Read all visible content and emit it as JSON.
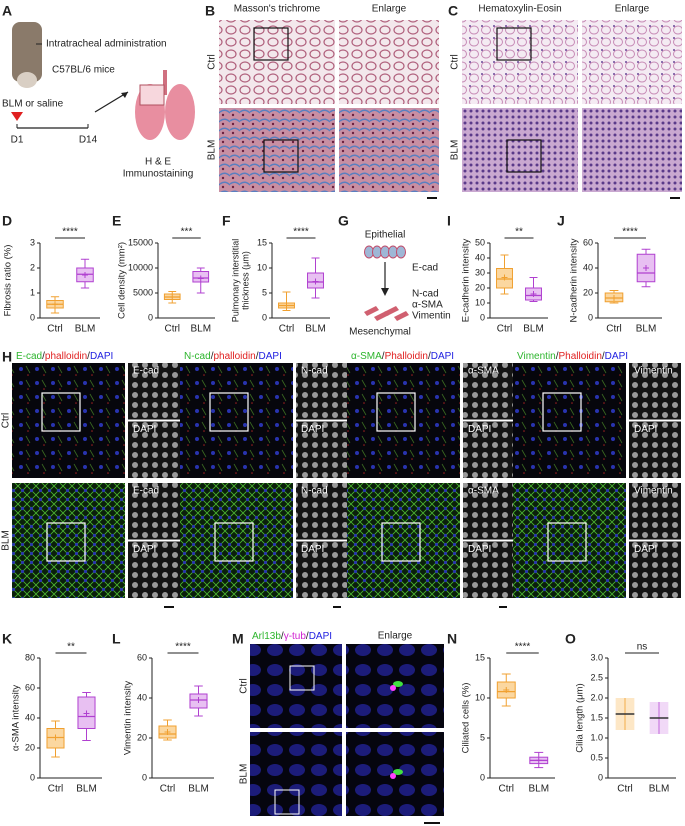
{
  "panel_letters": [
    "A",
    "B",
    "C",
    "D",
    "E",
    "F",
    "G",
    "I",
    "J",
    "H",
    "K",
    "L",
    "M",
    "N",
    "O"
  ],
  "panel_a": {
    "route": "Intratracheal administration",
    "strain": "C57BL/6 mice",
    "treatment": "BLM or saline",
    "timeline": [
      "D1",
      "D14"
    ],
    "readout": [
      "H & E",
      "Immunostaining"
    ]
  },
  "panel_b": {
    "columns": [
      "Masson's trichrome",
      "Enlarge"
    ],
    "rows": [
      "Ctrl",
      "BLM"
    ]
  },
  "panel_c": {
    "columns": [
      "Hematoxylin-Eosin",
      "Enlarge"
    ],
    "rows": [
      "Ctrl",
      "BLM"
    ]
  },
  "panel_g": {
    "epithelial": "Epithelial",
    "epithelial_marker": "E-cad",
    "mesenchymal_markers": [
      "N-cad",
      "α-SMA",
      "Vimentin"
    ],
    "mesenchymal": "Mesenchymal"
  },
  "panel_h": {
    "rows": [
      "Ctrl",
      "BLM"
    ],
    "header_colors": [
      "#2db52d",
      "#222222",
      "#e02020",
      "#222222",
      "#2020e0"
    ],
    "columns": [
      {
        "header": [
          "E-cad",
          "/",
          "phalloidin",
          "/",
          "DAPI"
        ],
        "insets": [
          "E-cad",
          "DAPI"
        ]
      },
      {
        "header": [
          "N-cad",
          "/",
          "phalloidin",
          "/",
          "DAPI"
        ],
        "insets": [
          "N-cad",
          "DAPI"
        ]
      },
      {
        "header": [
          "α-SMA",
          "/",
          "Phalloidin",
          "/",
          "DAPI"
        ],
        "insets": [
          "α-SMA",
          "DAPI"
        ]
      },
      {
        "header": [
          "Vimentin",
          "/",
          "Phalloidin",
          "/",
          "DAPI"
        ],
        "insets": [
          "Vimentin",
          "DAPI"
        ]
      }
    ]
  },
  "panel_m": {
    "header": [
      "Arl13b",
      "/",
      "γ-tub",
      "/",
      "DAPI"
    ],
    "header_colors": [
      "#2db52d",
      "#222222",
      "#d020d0",
      "#222222",
      "#2020e0"
    ],
    "enlarge": "Enlarge",
    "rows": [
      "Ctrl",
      "BLM"
    ]
  },
  "chart_data": [
    {
      "type": "box",
      "ylabel": "Fibrosis ratio (%)",
      "categories": [
        "Ctrl",
        "BLM"
      ],
      "colors": [
        "#f0a030",
        "#b040d0"
      ],
      "fills": [
        "#fbd7a0",
        "#e8c0f2"
      ],
      "ylim": [
        0,
        3
      ],
      "yticks": [
        0,
        1,
        2,
        3
      ],
      "significance": "****",
      "boxes": [
        {
          "min": 0.2,
          "q1": 0.4,
          "median": 0.55,
          "q3": 0.7,
          "max": 0.85,
          "mean": 0.55
        },
        {
          "min": 1.2,
          "q1": 1.45,
          "median": 1.75,
          "q3": 2.0,
          "max": 2.35,
          "mean": 1.72
        }
      ]
    },
    {
      "type": "box",
      "ylabel": "Cell density (mm²)",
      "categories": [
        "Ctrl",
        "BLM"
      ],
      "colors": [
        "#f0a030",
        "#b040d0"
      ],
      "fills": [
        "#fbd7a0",
        "#e8c0f2"
      ],
      "ylim": [
        0,
        15000
      ],
      "yticks": [
        0,
        5000,
        10000,
        15000
      ],
      "significance": "***",
      "boxes": [
        {
          "min": 3000,
          "q1": 3700,
          "median": 4200,
          "q3": 4800,
          "max": 5300,
          "mean": 4200
        },
        {
          "min": 5000,
          "q1": 7200,
          "median": 8000,
          "q3": 9300,
          "max": 10000,
          "mean": 7900
        }
      ]
    },
    {
      "type": "box",
      "ylabel": [
        "Pulmonary interstitial",
        "thickness (μm)"
      ],
      "categories": [
        "Ctrl",
        "BLM"
      ],
      "colors": [
        "#f0a030",
        "#b040d0"
      ],
      "fills": [
        "#fbd7a0",
        "#e8c0f2"
      ],
      "ylim": [
        0,
        15
      ],
      "yticks": [
        0,
        5,
        10,
        15
      ],
      "significance": "****",
      "boxes": [
        {
          "min": 1.5,
          "q1": 2.0,
          "median": 2.5,
          "q3": 3.0,
          "max": 5.2,
          "mean": 2.5
        },
        {
          "min": 4,
          "q1": 6,
          "median": 7.2,
          "q3": 9,
          "max": 12,
          "mean": 7.3
        }
      ]
    },
    {
      "type": "box",
      "ylabel": "E-cadherin intensity",
      "categories": [
        "Ctrl",
        "BLM"
      ],
      "colors": [
        "#f0a030",
        "#b040d0"
      ],
      "fills": [
        "#fbd7a0",
        "#e8c0f2"
      ],
      "ylim": [
        0,
        50
      ],
      "yticks": [
        0,
        10,
        20,
        30,
        40,
        50
      ],
      "significance": "**",
      "boxes": [
        {
          "min": 16,
          "q1": 20,
          "median": 26,
          "q3": 33,
          "max": 42,
          "mean": 27
        },
        {
          "min": 11,
          "q1": 12,
          "median": 15,
          "q3": 20,
          "max": 27,
          "mean": 16
        }
      ]
    },
    {
      "type": "box",
      "ylabel": "N-cadherin intensity",
      "categories": [
        "Ctrl",
        "BLM"
      ],
      "colors": [
        "#f0a030",
        "#b040d0"
      ],
      "fills": [
        "#fbd7a0",
        "#e8c0f2"
      ],
      "ylim": [
        0,
        60
      ],
      "yticks": [
        0,
        20,
        40,
        60
      ],
      "significance": "****",
      "boxes": [
        {
          "min": 12,
          "q1": 13,
          "median": 16,
          "q3": 20,
          "max": 22,
          "mean": 16
        },
        {
          "min": 25,
          "q1": 29,
          "median": 36,
          "q3": 51,
          "max": 55,
          "mean": 40
        }
      ]
    },
    {
      "type": "box",
      "ylabel": "α-SMA intensity",
      "categories": [
        "Ctrl",
        "BLM"
      ],
      "colors": [
        "#f0a030",
        "#b040d0"
      ],
      "fills": [
        "#fbd7a0",
        "#e8c0f2"
      ],
      "ylim": [
        0,
        80
      ],
      "yticks": [
        0,
        20,
        40,
        60,
        80
      ],
      "significance": "**",
      "boxes": [
        {
          "min": 14,
          "q1": 20,
          "median": 27,
          "q3": 33,
          "max": 38,
          "mean": 27
        },
        {
          "min": 25,
          "q1": 33,
          "median": 41,
          "q3": 54,
          "max": 57,
          "mean": 43
        }
      ]
    },
    {
      "type": "box",
      "ylabel": "Vimentin intensity",
      "categories": [
        "Ctrl",
        "BLM"
      ],
      "colors": [
        "#f0a030",
        "#b040d0"
      ],
      "fills": [
        "#fbd7a0",
        "#e8c0f2"
      ],
      "ylim": [
        0,
        60
      ],
      "yticks": [
        0,
        20,
        40,
        60
      ],
      "significance": "****",
      "boxes": [
        {
          "min": 19,
          "q1": 20,
          "median": 22,
          "q3": 26,
          "max": 29,
          "mean": 23
        },
        {
          "min": 31,
          "q1": 35,
          "median": 39,
          "q3": 42,
          "max": 46,
          "mean": 39
        }
      ]
    },
    {
      "type": "box",
      "ylabel": "Ciliated cells (%)",
      "categories": [
        "Ctrl",
        "BLM"
      ],
      "colors": [
        "#f0a030",
        "#b040d0"
      ],
      "fills": [
        "#fbd7a0",
        "#e8c0f2"
      ],
      "ylim": [
        0,
        15
      ],
      "yticks": [
        0,
        5,
        10,
        15
      ],
      "significance": "****",
      "boxes": [
        {
          "min": 9,
          "q1": 10,
          "median": 10.8,
          "q3": 12,
          "max": 13,
          "mean": 11
        },
        {
          "min": 1.3,
          "q1": 1.8,
          "median": 2.2,
          "q3": 2.6,
          "max": 3.2,
          "mean": 2.2
        }
      ]
    },
    {
      "type": "dot",
      "ylabel": "Cilia length (μm)",
      "categories": [
        "Ctrl",
        "BLM"
      ],
      "colors": [
        "#f0a030",
        "#b040d0"
      ],
      "fills": [
        "#fbd7a0",
        "#e8c0f2"
      ],
      "ylim": [
        0,
        3
      ],
      "yticks": [
        0,
        0.5,
        {
          "value": 1,
          "label": "1.0"
        },
        1.5,
        {
          "value": 2,
          "label": "2.0"
        },
        2.5,
        {
          "value": 3,
          "label": "3.0"
        }
      ],
      "significance": "ns",
      "groups": [
        {
          "mean": 1.6,
          "sd": 0.4
        },
        {
          "mean": 1.5,
          "sd": 0.4
        }
      ]
    }
  ]
}
